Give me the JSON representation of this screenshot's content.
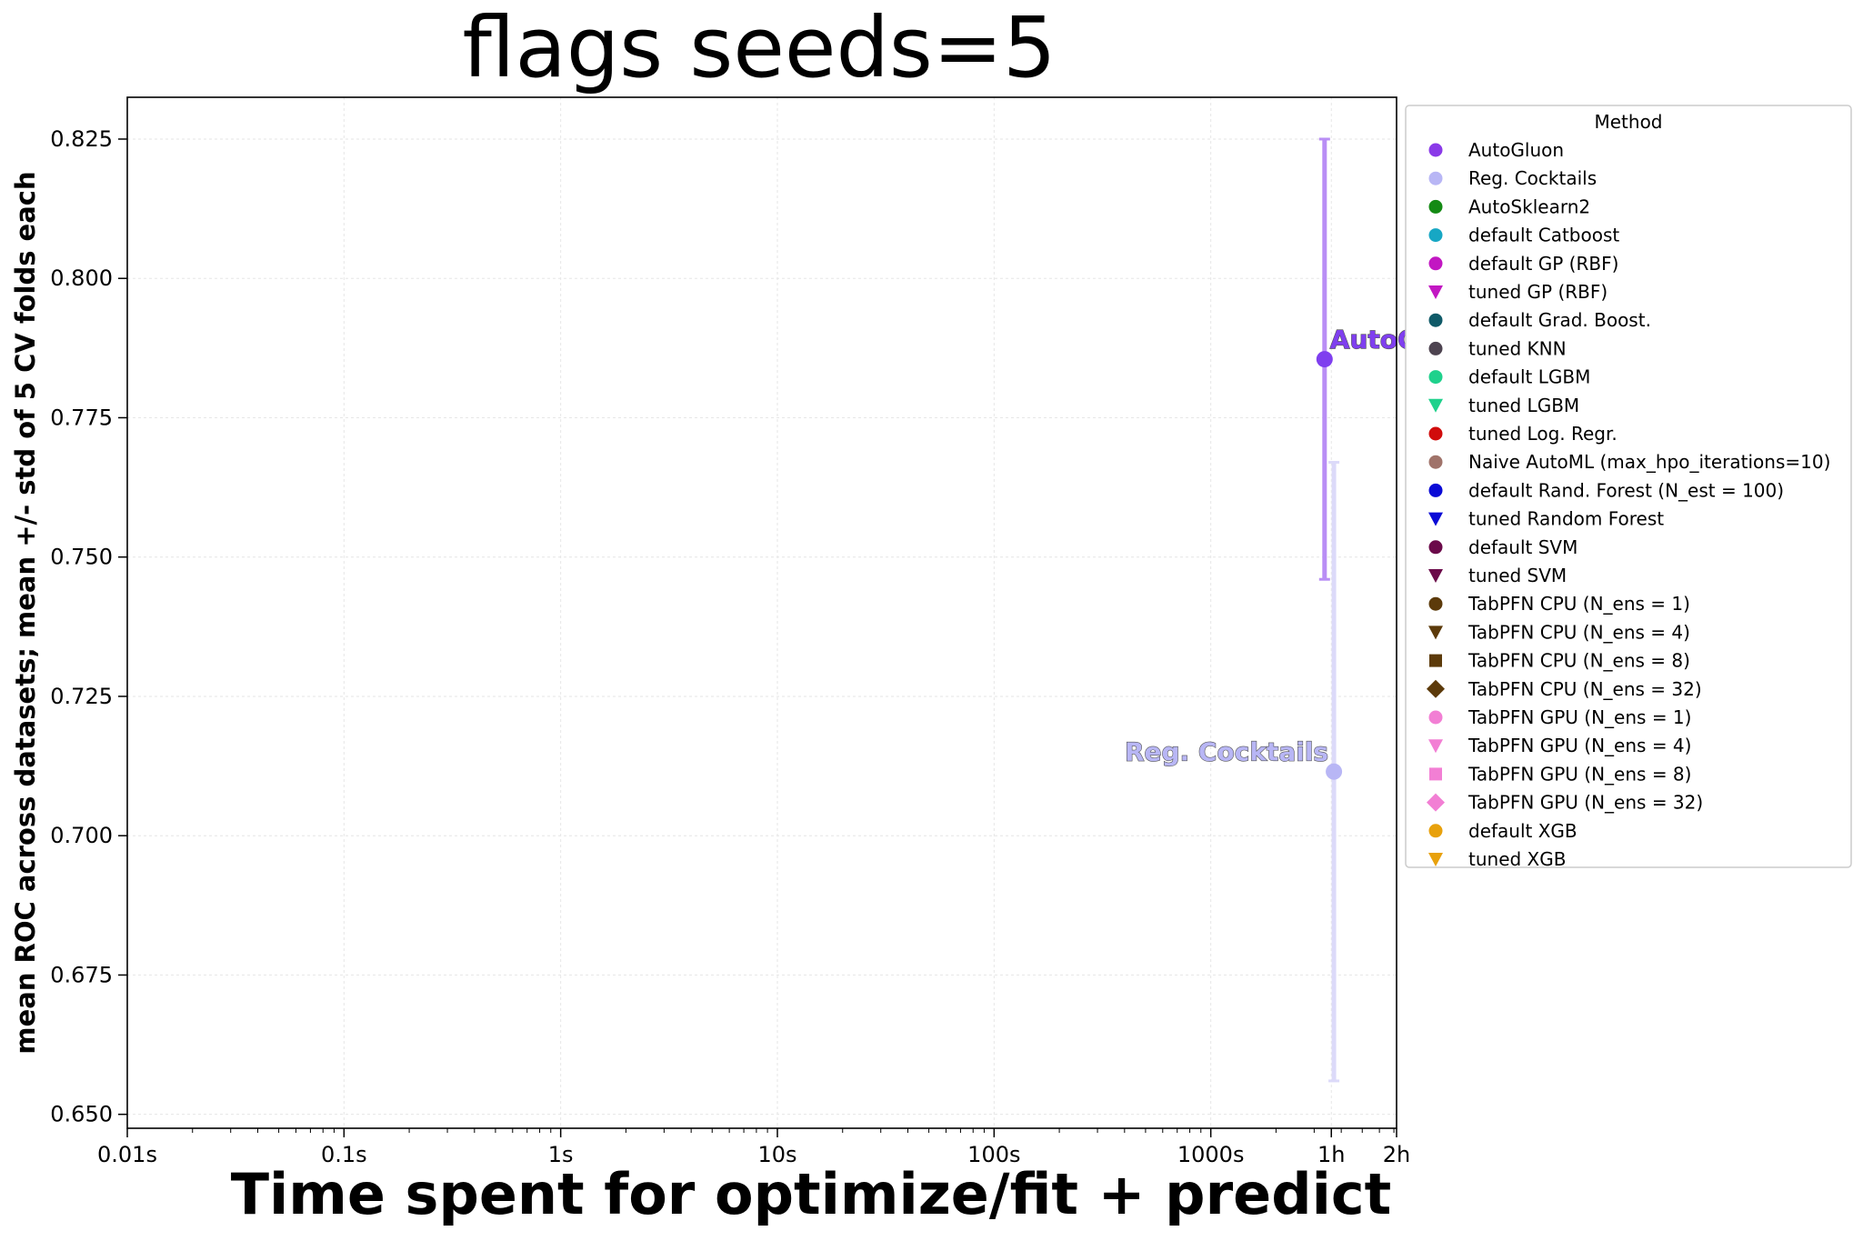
{
  "chart_data": {
    "type": "scatter",
    "title": "flags seeds=5",
    "xlabel": "Time spent for optimize/fit + predict",
    "ylabel": "mean ROC across datasets; mean +/- std of 5 CV folds each",
    "xscale": "log",
    "xlim": [
      0.01,
      7200
    ],
    "ylim": [
      0.6475,
      0.8325
    ],
    "grid": true,
    "xticks": [
      {
        "value": 0.01,
        "label": "0.01s"
      },
      {
        "value": 0.1,
        "label": "0.1s"
      },
      {
        "value": 1,
        "label": "1s"
      },
      {
        "value": 10,
        "label": "10s"
      },
      {
        "value": 100,
        "label": "100s"
      },
      {
        "value": 1000,
        "label": "1000s"
      },
      {
        "value": 3600,
        "label": "1h"
      },
      {
        "value": 7200,
        "label": "2h"
      }
    ],
    "yticks": [
      {
        "value": 0.65,
        "label": "0.650"
      },
      {
        "value": 0.675,
        "label": "0.675"
      },
      {
        "value": 0.7,
        "label": "0.700"
      },
      {
        "value": 0.725,
        "label": "0.725"
      },
      {
        "value": 0.75,
        "label": "0.750"
      },
      {
        "value": 0.775,
        "label": "0.775"
      },
      {
        "value": 0.8,
        "label": "0.800"
      },
      {
        "value": 0.825,
        "label": "0.825"
      }
    ],
    "points": [
      {
        "label": "AutoGluon",
        "x": 3350,
        "y": 0.7855,
        "err": 0.0395,
        "color": "#7f3fef",
        "err_color": "#b98ef5",
        "label_pos": "right"
      },
      {
        "label": "Reg. Cocktails",
        "x": 3700,
        "y": 0.7115,
        "err": 0.0555,
        "color": "#b8b6f5",
        "err_color": "#dcdaf9",
        "label_pos": "left"
      }
    ],
    "legend": {
      "title": "Method",
      "placement": "outside right",
      "items": [
        {
          "label": "AutoGluon",
          "marker": "circle",
          "color": "#8a3ae8"
        },
        {
          "label": "Reg. Cocktails",
          "marker": "circle",
          "color": "#b8b6f5"
        },
        {
          "label": "AutoSklearn2",
          "marker": "circle",
          "color": "#148a14"
        },
        {
          "label": "default Catboost",
          "marker": "circle",
          "color": "#17a7c4"
        },
        {
          "label": "default GP (RBF)",
          "marker": "circle",
          "color": "#c217c2"
        },
        {
          "label": "tuned GP (RBF)",
          "marker": "triangle-down",
          "color": "#c217c2"
        },
        {
          "label": "default Grad. Boost.",
          "marker": "circle",
          "color": "#0f5a68"
        },
        {
          "label": "tuned KNN",
          "marker": "circle",
          "color": "#4d4350"
        },
        {
          "label": "default LGBM",
          "marker": "circle",
          "color": "#1fd18c"
        },
        {
          "label": "tuned LGBM",
          "marker": "triangle-down",
          "color": "#1fd18c"
        },
        {
          "label": "tuned Log. Regr.",
          "marker": "circle",
          "color": "#d10c0c"
        },
        {
          "label": "Naive AutoML (max_hpo_iterations=10)",
          "marker": "circle",
          "color": "#a0736a"
        },
        {
          "label": "default Rand. Forest (N_est = 100)",
          "marker": "circle",
          "color": "#0a0ad6"
        },
        {
          "label": "tuned Random Forest",
          "marker": "triangle-down",
          "color": "#0a0ad6"
        },
        {
          "label": "default SVM",
          "marker": "circle",
          "color": "#6b0a4a"
        },
        {
          "label": "tuned SVM",
          "marker": "triangle-down",
          "color": "#6b0a4a"
        },
        {
          "label": "TabPFN CPU (N_ens =  1)",
          "marker": "circle",
          "color": "#5c3a0a"
        },
        {
          "label": "TabPFN CPU (N_ens =  4)",
          "marker": "triangle-down",
          "color": "#5c3a0a"
        },
        {
          "label": "TabPFN CPU (N_ens =  8)",
          "marker": "square",
          "color": "#5c3a0a"
        },
        {
          "label": "TabPFN CPU (N_ens = 32)",
          "marker": "diamond",
          "color": "#5c3a0a"
        },
        {
          "label": "TabPFN GPU (N_ens =  1)",
          "marker": "circle",
          "color": "#f27fd4"
        },
        {
          "label": "TabPFN GPU (N_ens =  4)",
          "marker": "triangle-down",
          "color": "#f27fd4"
        },
        {
          "label": "TabPFN GPU (N_ens =  8)",
          "marker": "square",
          "color": "#f27fd4"
        },
        {
          "label": "TabPFN GPU (N_ens = 32)",
          "marker": "diamond",
          "color": "#f27fd4"
        },
        {
          "label": "default XGB",
          "marker": "circle",
          "color": "#e8a10c"
        },
        {
          "label": "tuned XGB",
          "marker": "triangle-down",
          "color": "#e8a10c"
        }
      ]
    }
  }
}
